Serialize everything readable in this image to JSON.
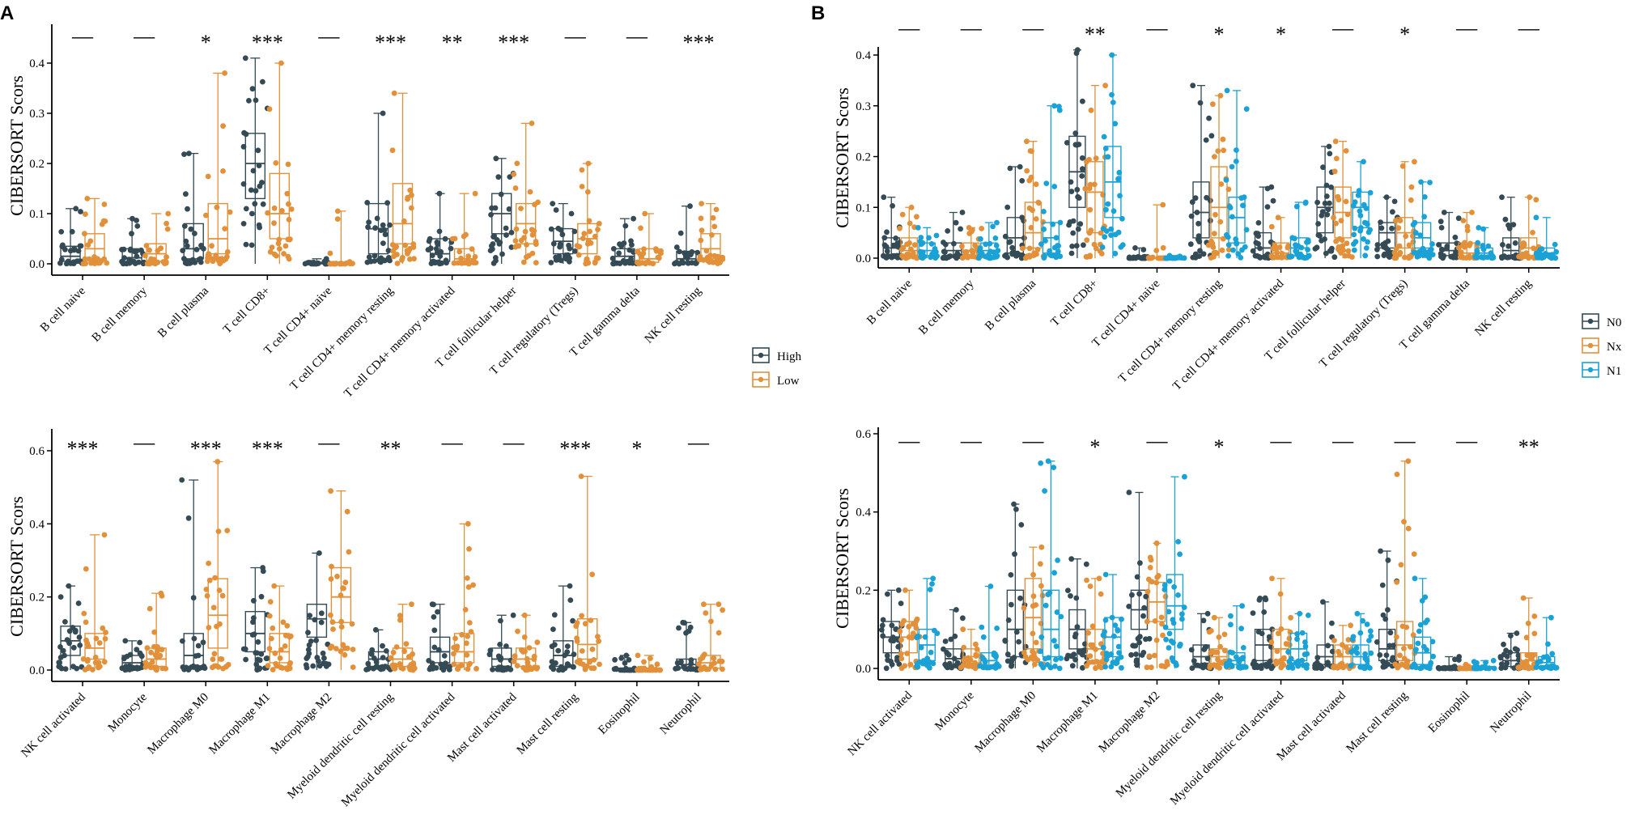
{
  "figure": {
    "panel_labels": [
      "A",
      "B"
    ]
  },
  "colors": {
    "High": "#344a54",
    "Low": "#e2913a",
    "N0": "#344a54",
    "Nx": "#e2913a",
    "N1": "#1aa2d6"
  },
  "legends": {
    "A": [
      {
        "name": "High",
        "color_key": "High"
      },
      {
        "name": "Low",
        "color_key": "Low"
      }
    ],
    "B": [
      {
        "name": "N0",
        "color_key": "N0"
      },
      {
        "name": "Nx",
        "color_key": "Nx"
      },
      {
        "name": "N1",
        "color_key": "N1"
      }
    ]
  },
  "chart_data": [
    {
      "id": "A_top",
      "panel": "A",
      "type": "box+jitter",
      "ylabel": "CIBERSORT Scors",
      "ylim": [
        0,
        0.44
      ],
      "yticks": [
        0.0,
        0.1,
        0.2,
        0.3,
        0.4
      ],
      "ytick_labels": [
        "0.0",
        "0.1",
        "0.2",
        "0.3",
        "0.4"
      ],
      "series_names": [
        "High",
        "Low"
      ],
      "categories": [
        "B cell naive",
        "B cell memory",
        "B cell plasma",
        "T cell CD8+",
        "T cell CD4+ naive",
        "T cell CD4+ memory resting",
        "T cell CD4+ memory activated",
        "T cell follicular helper",
        "T cell regulatory (Tregs)",
        "T cell gamma delta",
        "NK cell resting"
      ],
      "significance": [
        "—",
        "—",
        "*",
        "***",
        "—",
        "***",
        "**",
        "***",
        "—",
        "—",
        "***"
      ],
      "series": [
        {
          "name": "High",
          "stats": [
            [
              0,
              0.005,
              0.015,
              0.035,
              0.11
            ],
            [
              0,
              0.005,
              0.012,
              0.03,
              0.09
            ],
            [
              0,
              0.01,
              0.03,
              0.08,
              0.22
            ],
            [
              0,
              0.13,
              0.2,
              0.26,
              0.41
            ],
            [
              0,
              0,
              0.001,
              0.003,
              0.01
            ],
            [
              0,
              0.02,
              0.07,
              0.12,
              0.3
            ],
            [
              0,
              0.005,
              0.02,
              0.05,
              0.14
            ],
            [
              0,
              0.06,
              0.1,
              0.14,
              0.21
            ],
            [
              0,
              0.02,
              0.045,
              0.07,
              0.12
            ],
            [
              0,
              0.005,
              0.015,
              0.03,
              0.09
            ],
            [
              0,
              0.003,
              0.01,
              0.025,
              0.115
            ]
          ]
        },
        {
          "name": "Low",
          "stats": [
            [
              0,
              0.01,
              0.03,
              0.06,
              0.13
            ],
            [
              0,
              0.005,
              0.02,
              0.04,
              0.1
            ],
            [
              0,
              0.02,
              0.05,
              0.12,
              0.38
            ],
            [
              0,
              0.05,
              0.1,
              0.18,
              0.4
            ],
            [
              0,
              0,
              0.0,
              0.001,
              0.105
            ],
            [
              0,
              0.04,
              0.08,
              0.16,
              0.34
            ],
            [
              0,
              0.003,
              0.01,
              0.03,
              0.14
            ],
            [
              0,
              0.04,
              0.08,
              0.12,
              0.28
            ],
            [
              0,
              0.02,
              0.05,
              0.08,
              0.2
            ],
            [
              0,
              0.003,
              0.01,
              0.03,
              0.1
            ],
            [
              0,
              0.01,
              0.03,
              0.06,
              0.12
            ]
          ]
        }
      ]
    },
    {
      "id": "A_bottom",
      "panel": "A",
      "type": "box+jitter",
      "ylabel": "CIBERSORT Scors",
      "ylim": [
        0,
        0.62
      ],
      "yticks": [
        0.0,
        0.2,
        0.4,
        0.6
      ],
      "ytick_labels": [
        "0.0",
        "0.2",
        "0.4",
        "0.6"
      ],
      "series_names": [
        "High",
        "Low"
      ],
      "categories": [
        "NK cell activated",
        "Monocyte",
        "Macrophage M0",
        "Macrophage M1",
        "Macrophage M2",
        "Myeloid dendritic cell resting",
        "Myeloid dendritic cell activated",
        "Mast cell activated",
        "Mast cell resting",
        "Eosinophil",
        "Neutrophil"
      ],
      "significance": [
        "***",
        "—",
        "***",
        "***",
        "—",
        "**",
        "—",
        "—",
        "***",
        "*",
        "—"
      ],
      "series": [
        {
          "name": "High",
          "stats": [
            [
              0,
              0.04,
              0.08,
              0.12,
              0.23
            ],
            [
              0,
              0.01,
              0.02,
              0.04,
              0.08
            ],
            [
              0,
              0.01,
              0.04,
              0.1,
              0.52
            ],
            [
              0,
              0.05,
              0.1,
              0.16,
              0.28
            ],
            [
              0,
              0.09,
              0.14,
              0.18,
              0.32
            ],
            [
              0,
              0.01,
              0.03,
              0.05,
              0.11
            ],
            [
              0,
              0.02,
              0.05,
              0.09,
              0.18
            ],
            [
              0,
              0.01,
              0.03,
              0.06,
              0.15
            ],
            [
              0,
              0.01,
              0.04,
              0.08,
              0.23
            ],
            [
              0,
              0,
              0.002,
              0.005,
              0.04
            ],
            [
              0,
              0.005,
              0.015,
              0.03,
              0.13
            ]
          ]
        },
        {
          "name": "Low",
          "stats": [
            [
              0,
              0.03,
              0.06,
              0.1,
              0.37
            ],
            [
              0,
              0.01,
              0.03,
              0.06,
              0.21
            ],
            [
              0,
              0.06,
              0.15,
              0.25,
              0.57
            ],
            [
              0,
              0.02,
              0.05,
              0.1,
              0.23
            ],
            [
              0,
              0.13,
              0.2,
              0.28,
              0.49
            ],
            [
              0,
              0.01,
              0.03,
              0.06,
              0.18
            ],
            [
              0,
              0.02,
              0.05,
              0.1,
              0.4
            ],
            [
              0,
              0.01,
              0.03,
              0.06,
              0.15
            ],
            [
              0,
              0.03,
              0.07,
              0.14,
              0.53
            ],
            [
              0,
              0,
              0.002,
              0.005,
              0.04
            ],
            [
              0,
              0.005,
              0.02,
              0.04,
              0.18
            ]
          ]
        }
      ]
    },
    {
      "id": "B_top",
      "panel": "B",
      "type": "box+jitter",
      "ylabel": "CIBERSORT Scors",
      "ylim": [
        0,
        0.44
      ],
      "yticks": [
        0.0,
        0.1,
        0.2,
        0.3,
        0.4
      ],
      "ytick_labels": [
        "0.0",
        "0.1",
        "0.2",
        "0.3",
        "0.4"
      ],
      "series_names": [
        "N0",
        "Nx",
        "N1"
      ],
      "categories": [
        "B cell naive",
        "B cell memory",
        "B cell plasma",
        "T cell CD8+",
        "T cell CD4+ naive",
        "T cell CD4+ memory resting",
        "T cell CD4+ memory activated",
        "T cell follicular helper",
        "T cell regulatory (Tregs)",
        "T cell gamma delta",
        "NK cell resting"
      ],
      "significance": [
        "—",
        "—",
        "—",
        "**",
        "—",
        "*",
        "*",
        "—",
        "*",
        "—",
        "—"
      ],
      "series": [
        {
          "name": "N0",
          "stats": [
            [
              0,
              0.005,
              0.02,
              0.04,
              0.12
            ],
            [
              0,
              0.005,
              0.015,
              0.03,
              0.09
            ],
            [
              0,
              0.01,
              0.04,
              0.08,
              0.18
            ],
            [
              0,
              0.1,
              0.17,
              0.24,
              0.41
            ],
            [
              0,
              0,
              0.001,
              0.003,
              0.02
            ],
            [
              0,
              0.04,
              0.09,
              0.15,
              0.34
            ],
            [
              0,
              0.005,
              0.02,
              0.05,
              0.14
            ],
            [
              0,
              0.05,
              0.1,
              0.14,
              0.22
            ],
            [
              0,
              0.02,
              0.05,
              0.07,
              0.12
            ],
            [
              0,
              0.005,
              0.015,
              0.03,
              0.09
            ],
            [
              0,
              0.003,
              0.015,
              0.04,
              0.12
            ]
          ]
        },
        {
          "name": "Nx",
          "stats": [
            [
              0,
              0.005,
              0.015,
              0.04,
              0.1
            ],
            [
              0,
              0.005,
              0.015,
              0.03,
              0.06
            ],
            [
              0,
              0.02,
              0.05,
              0.11,
              0.23
            ],
            [
              0,
              0.05,
              0.13,
              0.19,
              0.34
            ],
            [
              0,
              0,
              0,
              0.001,
              0.105
            ],
            [
              0,
              0.04,
              0.1,
              0.18,
              0.32
            ],
            [
              0,
              0.003,
              0.01,
              0.03,
              0.08
            ],
            [
              0,
              0.04,
              0.09,
              0.14,
              0.23
            ],
            [
              0,
              0.02,
              0.05,
              0.08,
              0.19
            ],
            [
              0,
              0.003,
              0.01,
              0.03,
              0.09
            ],
            [
              0,
              0.005,
              0.02,
              0.04,
              0.12
            ]
          ]
        },
        {
          "name": "N1",
          "stats": [
            [
              0,
              0.005,
              0.015,
              0.03,
              0.06
            ],
            [
              0,
              0.005,
              0.015,
              0.03,
              0.07
            ],
            [
              0,
              0.01,
              0.04,
              0.07,
              0.3
            ],
            [
              0,
              0.08,
              0.15,
              0.22,
              0.4
            ],
            [
              0,
              0,
              0,
              0.001,
              0.005
            ],
            [
              0,
              0.03,
              0.08,
              0.12,
              0.33
            ],
            [
              0,
              0.005,
              0.02,
              0.04,
              0.11
            ],
            [
              0,
              0.06,
              0.1,
              0.13,
              0.19
            ],
            [
              0,
              0.02,
              0.04,
              0.07,
              0.15
            ],
            [
              0,
              0.003,
              0.01,
              0.02,
              0.06
            ],
            [
              0,
              0.003,
              0.01,
              0.02,
              0.08
            ]
          ]
        }
      ]
    },
    {
      "id": "B_bottom",
      "panel": "B",
      "type": "box+jitter",
      "ylabel": "CIBERSORT Scors",
      "ylim": [
        0,
        0.62
      ],
      "yticks": [
        0.0,
        0.2,
        0.4,
        0.6
      ],
      "ytick_labels": [
        "0.0",
        "0.2",
        "0.4",
        "0.6"
      ],
      "series_names": [
        "N0",
        "Nx",
        "N1"
      ],
      "categories": [
        "NK cell activated",
        "Monocyte",
        "Macrophage M0",
        "Macrophage M1",
        "Macrophage M2",
        "Myeloid dendritic cell resting",
        "Myeloid dendritic cell activated",
        "Mast cell activated",
        "Mast cell resting",
        "Eosinophil",
        "Neutrophil"
      ],
      "significance": [
        "—",
        "—",
        "—",
        "*",
        "—",
        "*",
        "—",
        "—",
        "—",
        "—",
        "**"
      ],
      "series": [
        {
          "name": "N0",
          "stats": [
            [
              0,
              0.04,
              0.08,
              0.12,
              0.2
            ],
            [
              0,
              0.01,
              0.025,
              0.05,
              0.15
            ],
            [
              0,
              0.03,
              0.1,
              0.2,
              0.42
            ],
            [
              0,
              0.05,
              0.1,
              0.15,
              0.28
            ],
            [
              0,
              0.1,
              0.15,
              0.2,
              0.45
            ],
            [
              0,
              0.01,
              0.03,
              0.06,
              0.14
            ],
            [
              0,
              0.02,
              0.06,
              0.1,
              0.18
            ],
            [
              0,
              0.01,
              0.03,
              0.06,
              0.17
            ],
            [
              0,
              0.02,
              0.05,
              0.1,
              0.3
            ],
            [
              0,
              0,
              0.002,
              0.005,
              0.03
            ],
            [
              0,
              0.005,
              0.02,
              0.04,
              0.09
            ]
          ]
        },
        {
          "name": "Nx",
          "stats": [
            [
              0,
              0.04,
              0.08,
              0.12,
              0.2
            ],
            [
              0,
              0.01,
              0.03,
              0.05,
              0.1
            ],
            [
              0,
              0.05,
              0.13,
              0.23,
              0.31
            ],
            [
              0,
              0.02,
              0.05,
              0.1,
              0.23
            ],
            [
              0,
              0.12,
              0.17,
              0.22,
              0.32
            ],
            [
              0,
              0.01,
              0.03,
              0.05,
              0.13
            ],
            [
              0,
              0.02,
              0.05,
              0.1,
              0.23
            ],
            [
              0,
              0.01,
              0.03,
              0.06,
              0.11
            ],
            [
              0,
              0.02,
              0.06,
              0.12,
              0.53
            ],
            [
              0,
              0,
              0,
              0.002,
              0.01
            ],
            [
              0,
              0.005,
              0.02,
              0.04,
              0.18
            ]
          ]
        },
        {
          "name": "N1",
          "stats": [
            [
              0,
              0.02,
              0.06,
              0.1,
              0.23
            ],
            [
              0,
              0.005,
              0.02,
              0.04,
              0.21
            ],
            [
              0,
              0.03,
              0.1,
              0.2,
              0.53
            ],
            [
              0,
              0.03,
              0.08,
              0.13,
              0.24
            ],
            [
              0,
              0.1,
              0.16,
              0.24,
              0.49
            ],
            [
              0,
              0.01,
              0.02,
              0.04,
              0.16
            ],
            [
              0,
              0.02,
              0.05,
              0.09,
              0.14
            ],
            [
              0,
              0.01,
              0.03,
              0.06,
              0.14
            ],
            [
              0,
              0.01,
              0.04,
              0.08,
              0.23
            ],
            [
              0,
              0,
              0.002,
              0.005,
              0.02
            ],
            [
              0,
              0.005,
              0.015,
              0.03,
              0.13
            ]
          ]
        }
      ]
    }
  ]
}
